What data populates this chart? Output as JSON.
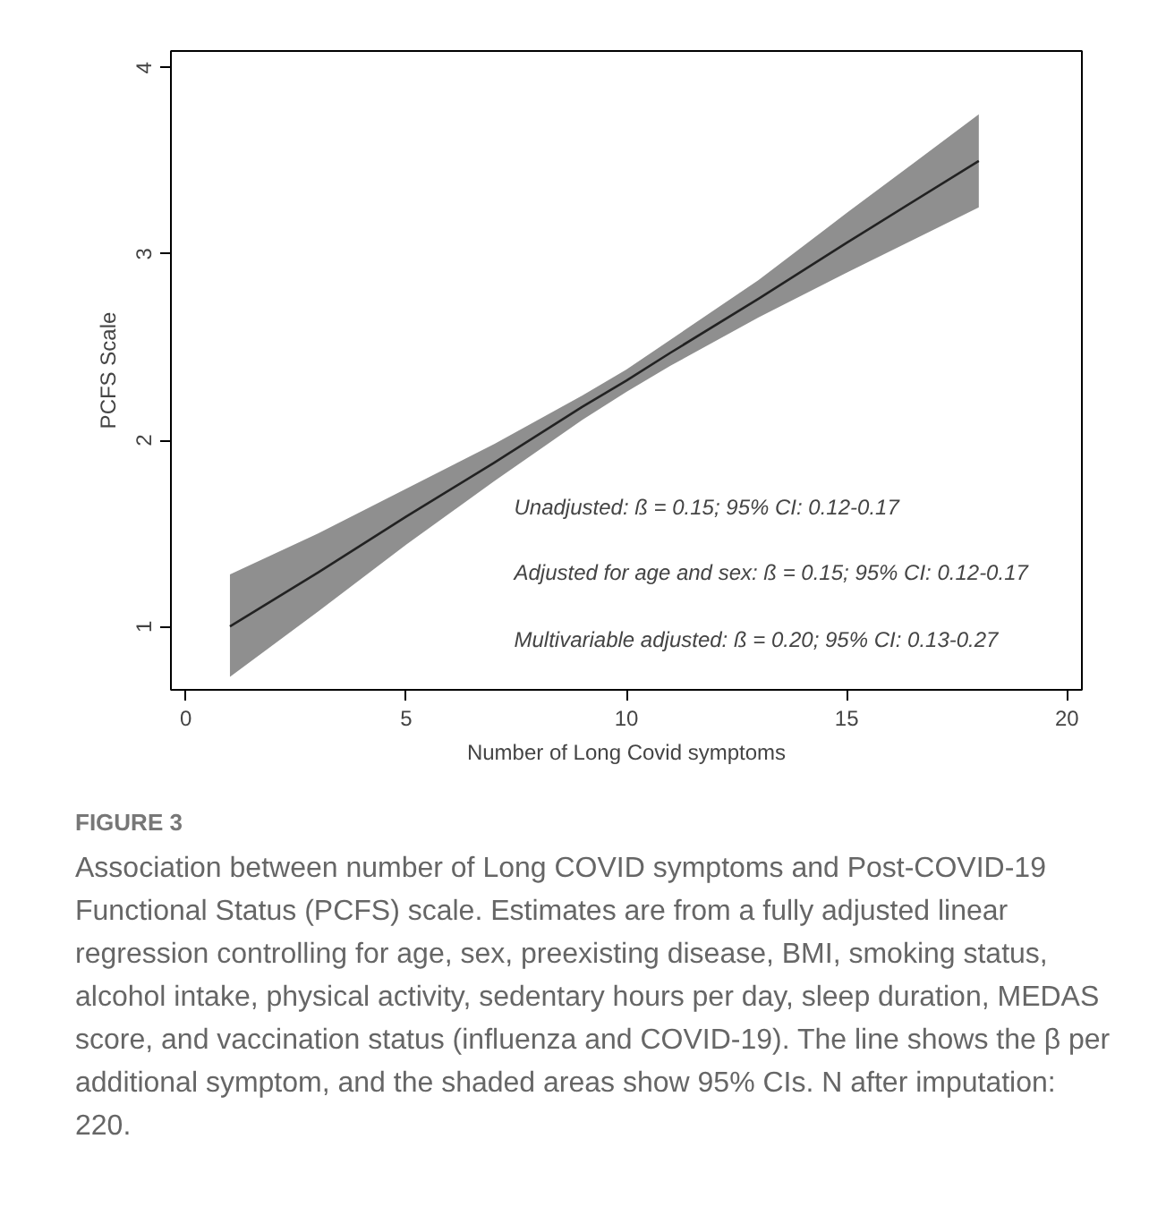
{
  "chart_data": {
    "type": "line",
    "title": "FIGURE 3",
    "subtitle": "Association between number of Long COVID symptoms and Post-COVID-19 Functional Status (PCFS) scale. Estimates are from a fully adjusted linear regression controlling for age, sex, preexisting disease, BMI, smoking status, alcohol intake, physical activity, sedentary hours per day, sleep duration, MEDAS score, and vaccination status (influenza and COVID-19). The line shows the β per additional symptom, and the shaded areas show 95% CIs. N after imputation: 220.",
    "xlabel": "Number of Long Covid symptoms",
    "ylabel": "PCFS Scale",
    "x": [
      1,
      3,
      5,
      7,
      9,
      10,
      11,
      13,
      15,
      18
    ],
    "series": [
      {
        "color": "#222222",
        "values": [
          1.0,
          1.29,
          1.59,
          1.88,
          2.18,
          2.32,
          2.47,
          2.76,
          3.06,
          3.5
        ],
        "lower": [
          0.73,
          1.08,
          1.44,
          1.78,
          2.11,
          2.26,
          2.4,
          2.66,
          2.9,
          3.25
        ],
        "upper": [
          1.28,
          1.5,
          1.74,
          1.98,
          2.24,
          2.38,
          2.54,
          2.86,
          3.22,
          3.75
        ]
      }
    ],
    "xlim": [
      -0.34,
      20.34
    ],
    "ylim": [
      0.66,
      4.09
    ],
    "xticks": [
      0,
      5,
      10,
      15,
      20
    ],
    "yticks": [
      1,
      2,
      3,
      4
    ],
    "grid": false,
    "marker": "none",
    "line_style": "solid",
    "annotations": [
      "Unadjusted: ß = 0.15; 95% CI: 0.12-0.17",
      "Adjusted for age and sex: ß = 0.15; 95% CI: 0.12-0.17",
      "Multivariable adjusted: ß = 0.20; 95% CI: 0.13-0.27"
    ]
  }
}
